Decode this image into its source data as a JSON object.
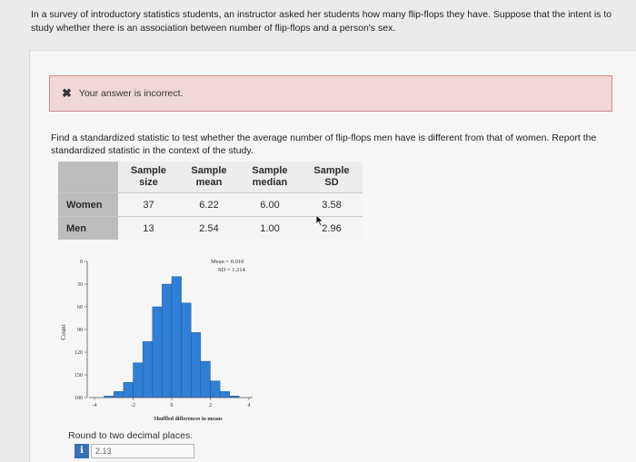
{
  "question": {
    "text": "In a survey of introductory statistics students, an instructor asked her students how many flip-flops they have. Suppose that the intent is to study whether there is an association between number of flip-flops and a person's sex."
  },
  "feedback": {
    "icon": "close-icon",
    "message": "Your answer is incorrect."
  },
  "prompt": {
    "text": "Find a standardized statistic to test whether the average number of flip-flops men have is different from that of women. Report the standardized statistic in the context of the study."
  },
  "table": {
    "headers": [
      {
        "line1": "Sample",
        "line2": "size"
      },
      {
        "line1": "Sample",
        "line2": "mean"
      },
      {
        "line1": "Sample",
        "line2": "median"
      },
      {
        "line1": "Sample",
        "line2": "SD"
      }
    ],
    "rows": [
      {
        "label": "Women",
        "values": [
          "37",
          "6.22",
          "6.00",
          "3.58"
        ]
      },
      {
        "label": "Men",
        "values": [
          "13",
          "2.54",
          "1.00",
          "2.96"
        ]
      }
    ]
  },
  "chart_data": {
    "type": "bar",
    "xlabel": "Shuffled differences in means",
    "ylabel": "Count",
    "x_ticks": [
      "-4",
      "-2",
      "0",
      "2",
      "4"
    ],
    "y_ticks": [
      "0",
      "30",
      "60",
      "90",
      "120",
      "150",
      "180"
    ],
    "xlim": [
      -4,
      4
    ],
    "ylim": [
      0,
      180
    ],
    "annotation": [
      "Mean = 0.010",
      "SD = 1.214"
    ],
    "bar_color": "#2f7fd6",
    "bins": [
      -3.25,
      -2.75,
      -2.25,
      -1.75,
      -1.25,
      -0.75,
      -0.25,
      0.25,
      0.75,
      1.25,
      1.75,
      2.25,
      2.75,
      3.25
    ],
    "bin_width": 0.5,
    "values": [
      2,
      8,
      20,
      46,
      74,
      120,
      150,
      160,
      125,
      86,
      48,
      22,
      8,
      2
    ]
  },
  "answer": {
    "instruction": "Round to two decimal places.",
    "info_icon": "i",
    "value": "2.13"
  },
  "colors": {
    "feedback_bg": "#f1d7d7",
    "feedback_border": "#cf8b8b",
    "info_icon": "#3b6fb6"
  }
}
